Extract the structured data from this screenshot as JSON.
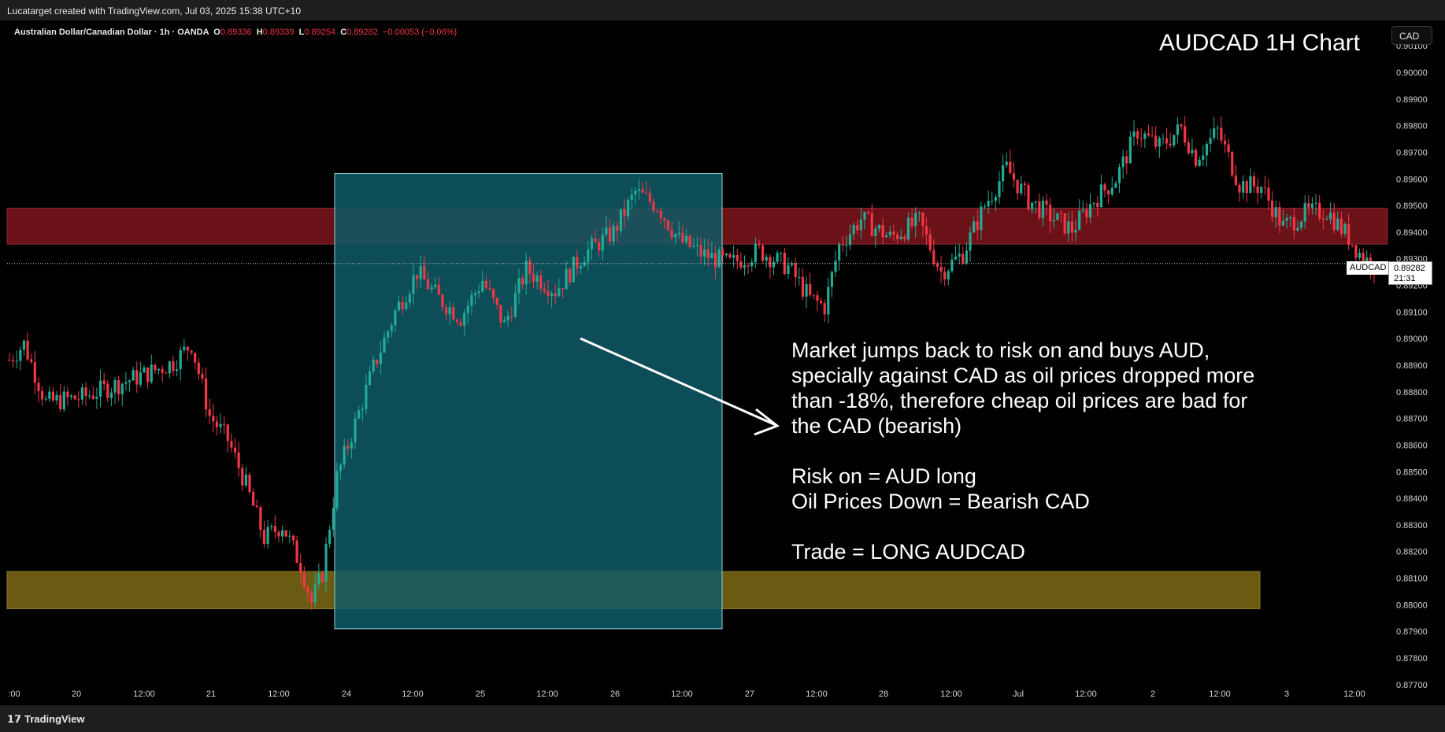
{
  "header": {
    "created_by": "Lucatarget created with TradingView.com, Jul 03, 2025 15:38 UTC+10"
  },
  "legend": {
    "symbol": "Australian Dollar/Canadian Dollar · 1h · OANDA",
    "o_label": "O",
    "o_value": "0.89336",
    "h_label": "H",
    "h_value": "0.89339",
    "l_label": "L",
    "l_value": "0.89254",
    "c_label": "C",
    "c_value": "0.89282",
    "change": "−0.00053 (−0.06%)"
  },
  "currency_button": "CAD",
  "footer": {
    "brand": "TradingView"
  },
  "colors": {
    "up": "#22ab94",
    "down": "#f23645",
    "resistance_zone": "#6b1219",
    "support_zone": "#6b5a12",
    "highlight_box": "#0f5a66"
  },
  "chart_data": {
    "type": "candlestick",
    "title": "AUDCAD 1H Chart",
    "symbol": "AUDCAD",
    "timeframe": "1h",
    "ylim": [
      0.8767,
      0.9013
    ],
    "y_ticks": [
      "0.90100",
      "0.90000",
      "0.89900",
      "0.89800",
      "0.89700",
      "0.89600",
      "0.89500",
      "0.89400",
      "0.89300",
      "0.89200",
      "0.89100",
      "0.89000",
      "0.88900",
      "0.88800",
      "0.88700",
      "0.88600",
      "0.88500",
      "0.88400",
      "0.88300",
      "0.88200",
      "0.88100",
      "0.88000",
      "0.87900",
      "0.87800",
      "0.87700"
    ],
    "x_ticks": [
      ":00",
      "20",
      "12:00",
      "21",
      "12:00",
      "24",
      "12:00",
      "25",
      "12:00",
      "26",
      "12:00",
      "27",
      "12:00",
      "28",
      "12:00",
      "Jul",
      "12:00",
      "2",
      "12:00",
      "3",
      "12:00"
    ],
    "last_price": "0.89282",
    "last_price_label": "AUDCAD",
    "countdown": "21:31",
    "zones": [
      {
        "name": "resistance",
        "from": 0.89355,
        "to": 0.8949
      },
      {
        "name": "support",
        "from": 0.87985,
        "to": 0.88125
      }
    ],
    "closes_anchor": [
      {
        "x": 0,
        "close": 0.8892
      },
      {
        "x": 4,
        "close": 0.8898
      },
      {
        "x": 10,
        "close": 0.8876
      },
      {
        "x": 20,
        "close": 0.8878
      },
      {
        "x": 30,
        "close": 0.8883
      },
      {
        "x": 38,
        "close": 0.8887
      },
      {
        "x": 45,
        "close": 0.8891
      },
      {
        "x": 50,
        "close": 0.8898
      },
      {
        "x": 55,
        "close": 0.8871
      },
      {
        "x": 60,
        "close": 0.8862
      },
      {
        "x": 65,
        "close": 0.8845
      },
      {
        "x": 70,
        "close": 0.8825
      },
      {
        "x": 75,
        "close": 0.883
      },
      {
        "x": 80,
        "close": 0.8815
      },
      {
        "x": 83,
        "close": 0.8801
      },
      {
        "x": 86,
        "close": 0.8812
      },
      {
        "x": 90,
        "close": 0.8848
      },
      {
        "x": 95,
        "close": 0.8868
      },
      {
        "x": 100,
        "close": 0.8889
      },
      {
        "x": 106,
        "close": 0.891
      },
      {
        "x": 112,
        "close": 0.8925
      },
      {
        "x": 118,
        "close": 0.8915
      },
      {
        "x": 124,
        "close": 0.8908
      },
      {
        "x": 130,
        "close": 0.8922
      },
      {
        "x": 136,
        "close": 0.8905
      },
      {
        "x": 142,
        "close": 0.8926
      },
      {
        "x": 150,
        "close": 0.8918
      },
      {
        "x": 158,
        "close": 0.8932
      },
      {
        "x": 166,
        "close": 0.894
      },
      {
        "x": 172,
        "close": 0.8955
      },
      {
        "x": 178,
        "close": 0.895
      },
      {
        "x": 184,
        "close": 0.8937
      },
      {
        "x": 190,
        "close": 0.8932
      },
      {
        "x": 198,
        "close": 0.8928
      },
      {
        "x": 206,
        "close": 0.8933
      },
      {
        "x": 214,
        "close": 0.8927
      },
      {
        "x": 220,
        "close": 0.8915
      },
      {
        "x": 224,
        "close": 0.8912
      },
      {
        "x": 228,
        "close": 0.8935
      },
      {
        "x": 234,
        "close": 0.8945
      },
      {
        "x": 242,
        "close": 0.8938
      },
      {
        "x": 250,
        "close": 0.8944
      },
      {
        "x": 256,
        "close": 0.8925
      },
      {
        "x": 262,
        "close": 0.8932
      },
      {
        "x": 268,
        "close": 0.895
      },
      {
        "x": 274,
        "close": 0.8964
      },
      {
        "x": 280,
        "close": 0.8952
      },
      {
        "x": 286,
        "close": 0.8946
      },
      {
        "x": 292,
        "close": 0.8941
      },
      {
        "x": 298,
        "close": 0.8952
      },
      {
        "x": 304,
        "close": 0.896
      },
      {
        "x": 310,
        "close": 0.8978
      },
      {
        "x": 316,
        "close": 0.8972
      },
      {
        "x": 322,
        "close": 0.8979
      },
      {
        "x": 326,
        "close": 0.8968
      },
      {
        "x": 332,
        "close": 0.8978
      },
      {
        "x": 338,
        "close": 0.8958
      },
      {
        "x": 344,
        "close": 0.8957
      },
      {
        "x": 350,
        "close": 0.8942
      },
      {
        "x": 356,
        "close": 0.8947
      },
      {
        "x": 362,
        "close": 0.8948
      },
      {
        "x": 368,
        "close": 0.8938
      },
      {
        "x": 372,
        "close": 0.893
      },
      {
        "x": 375,
        "close": 0.8928
      }
    ],
    "n_candles": 376,
    "highlight_box": {
      "from_index": 88,
      "to_index": 192,
      "price_top": 0.8962,
      "price_bottom": 0.8791
    },
    "annotation": {
      "lines": [
        "Market jumps back to risk on and buys AUD,",
        "specially against CAD as oil prices dropped more",
        "than -18%, therefore cheap oil prices are bad for",
        "the CAD (bearish)",
        "",
        "Risk on = AUD long",
        "Oil Prices Down = Bearish CAD",
        "",
        "Trade = LONG AUDCAD"
      ]
    }
  }
}
